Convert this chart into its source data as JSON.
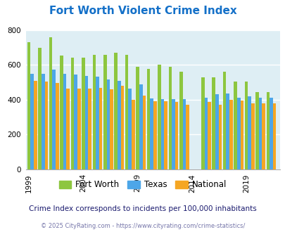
{
  "title": "Fort Worth Violent Crime Index",
  "years": [
    1999,
    2000,
    2001,
    2002,
    2003,
    2004,
    2005,
    2006,
    2007,
    2008,
    2009,
    2010,
    2011,
    2012,
    2013,
    2015,
    2016,
    2017,
    2018,
    2019,
    2020,
    2021
  ],
  "fort_worth": [
    730,
    700,
    760,
    655,
    640,
    642,
    660,
    658,
    670,
    658,
    590,
    578,
    600,
    590,
    562,
    528,
    528,
    560,
    505,
    503,
    445,
    445
  ],
  "texas": [
    548,
    548,
    575,
    550,
    547,
    538,
    533,
    518,
    507,
    463,
    490,
    408,
    405,
    404,
    402,
    411,
    432,
    434,
    412,
    418,
    410,
    410
  ],
  "national": [
    507,
    505,
    498,
    465,
    463,
    466,
    470,
    460,
    480,
    400,
    425,
    390,
    390,
    387,
    370,
    388,
    373,
    400,
    396,
    380,
    378,
    380
  ],
  "x_positions": [
    0,
    1,
    2,
    3,
    4,
    5,
    6,
    7,
    8,
    9,
    10,
    11,
    12,
    13,
    14,
    16,
    17,
    18,
    19,
    20,
    21,
    22
  ],
  "fort_worth_color": "#8dc63f",
  "texas_color": "#4da6e8",
  "national_color": "#f5a623",
  "bg_color": "#deeef4",
  "title_color": "#1470c8",
  "ylabel_max": 800,
  "shown_years": [
    1999,
    2004,
    2009,
    2014,
    2019
  ],
  "shown_year_positions": [
    0,
    5,
    10,
    15,
    20
  ],
  "note": "Crime Index corresponds to incidents per 100,000 inhabitants",
  "copyright": "© 2025 CityRating.com - https://www.cityrating.com/crime-statistics/",
  "note_color": "#1a1a6e",
  "copyright_color": "#7777aa"
}
